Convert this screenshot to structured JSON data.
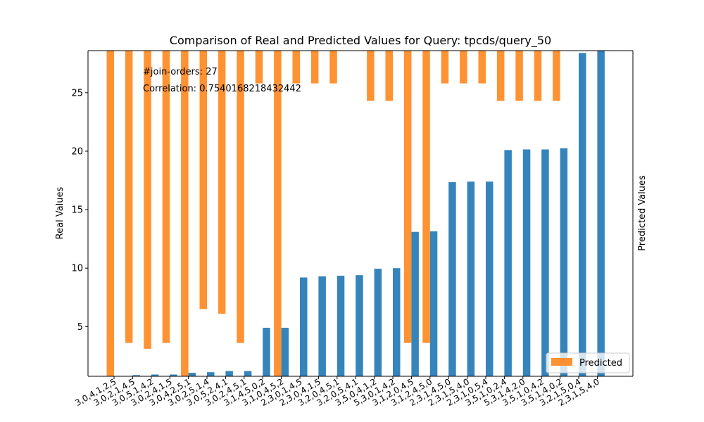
{
  "chart_data": {
    "type": "bar",
    "title": "Comparison of Real and Predicted Values for Query: tpcds/query_50",
    "ylabel_left": "Real Values",
    "ylabel_right": "Predicted Values",
    "annotations": [
      "#join-orders: 27",
      "Correlation: 0.7540168218432442"
    ],
    "legend": {
      "label": "Predicted",
      "position": "lower right"
    },
    "ylim": [
      0.75,
      28.6
    ],
    "yticks": [
      5,
      10,
      15,
      20,
      25
    ],
    "grid": false,
    "categories": [
      "3,0,4,1,2,5",
      "3,0,2,1,4,5",
      "3,0,5,1,4,2",
      "3,0,2,4,1,5",
      "3,0,4,2,5,1",
      "3,0,2,5,1,4",
      "3,0,5,2,4,1",
      "3,0,2,4,5,1",
      "3,1,4,5,0,2",
      "3,1,0,4,5,2",
      "2,3,0,1,4,5",
      "2,3,0,4,1,5",
      "3,2,0,4,5,1",
      "3,2,0,5,4,1",
      "3,5,0,4,1,2",
      "5,3,0,1,4,2",
      "3,1,2,0,4,5",
      "3,1,2,4,5,0",
      "2,3,1,4,5,0",
      "2,3,1,5,4,0",
      "2,3,1,0,5,4",
      "3,5,1,0,2,4",
      "5,3,1,4,2,0",
      "3,5,1,0,4,2",
      "3,5,1,4,0,2",
      "3,2,1,5,0,4",
      "2,3,1,5,4,0"
    ],
    "series": [
      {
        "name": "",
        "color": "#1f77b4",
        "values": [
          0.7,
          0.85,
          0.9,
          0.9,
          1.05,
          1.1,
          1.2,
          1.2,
          4.9,
          4.9,
          9.2,
          9.3,
          9.35,
          9.4,
          9.95,
          10.0,
          13.1,
          13.15,
          17.35,
          17.4,
          17.4,
          20.1,
          20.15,
          20.15,
          20.25,
          28.4,
          28.7
        ]
      },
      {
        "name": "Predicted",
        "color": "#ff7f0e",
        "values": [
          0.0,
          3.6,
          3.1,
          3.6,
          0.0,
          6.5,
          6.1,
          3.6,
          25.8,
          0.0,
          25.8,
          25.8,
          25.8,
          null,
          24.3,
          24.3,
          3.6,
          3.6,
          25.8,
          25.8,
          25.8,
          24.3,
          24.3,
          24.3,
          24.3,
          null,
          null
        ]
      }
    ]
  }
}
